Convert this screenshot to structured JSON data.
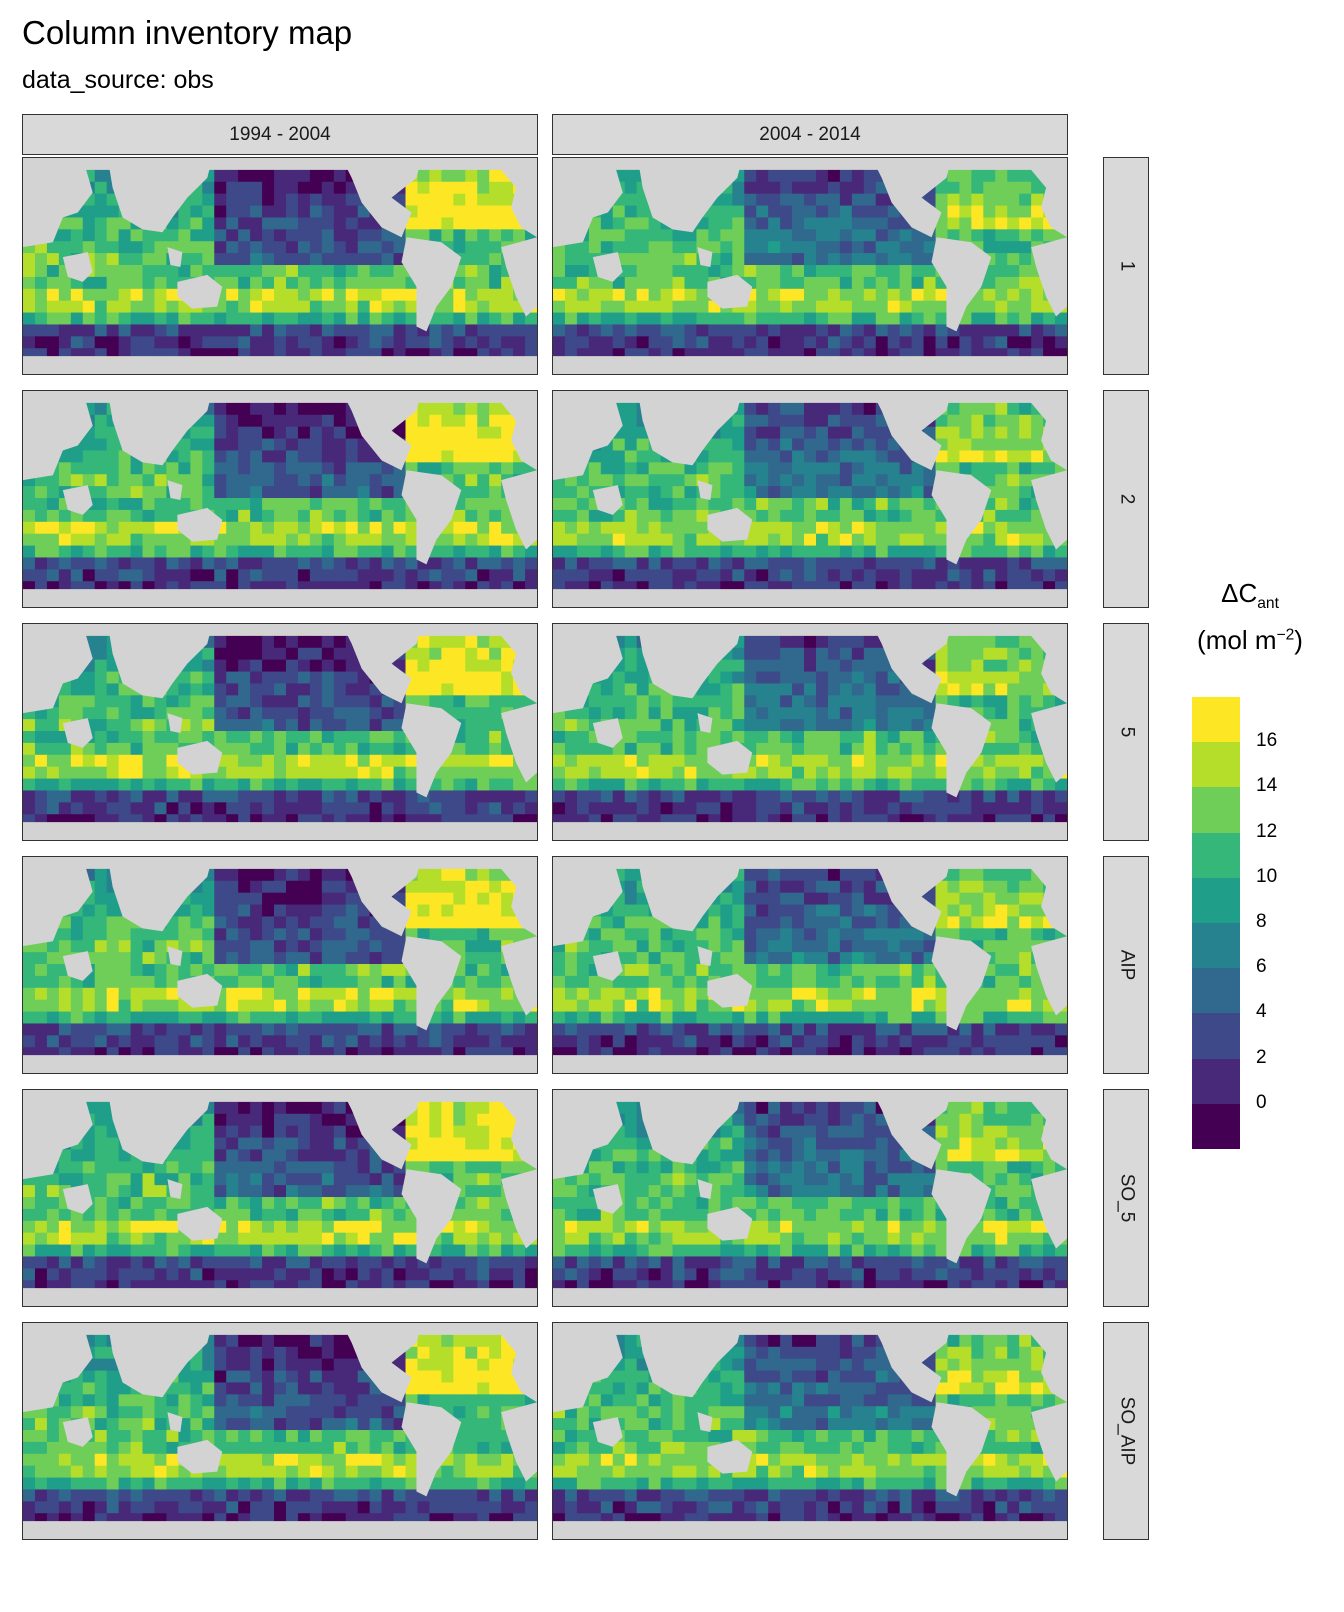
{
  "title": "Column inventory map",
  "subtitle": "data_source: obs",
  "legend": {
    "title_main": "ΔC",
    "title_sub": "ant",
    "unit_prefix": "(mol m",
    "unit_sup": "−2",
    "unit_suffix": ")",
    "ticks": [
      "16",
      "14",
      "12",
      "10",
      "8",
      "6",
      "4",
      "2",
      "0"
    ],
    "colors": [
      "#fde725",
      "#b5de2b",
      "#6ece58",
      "#35b779",
      "#1f9e89",
      "#26828e",
      "#31688e",
      "#3e4989",
      "#482878",
      "#440154"
    ]
  },
  "chart_data": {
    "type": "heatmap",
    "title": "Column inventory map",
    "subtitle": "data_source: obs",
    "columns": [
      "1994 - 2004",
      "2004 - 2014"
    ],
    "rows": [
      "1",
      "2",
      "5",
      "AIP",
      "SO_5",
      "SO_AIP"
    ],
    "legend_title": "ΔCant (mol m−2)",
    "scale_breaks": [
      16,
      14,
      12,
      10,
      8,
      6,
      4,
      2,
      0
    ],
    "colormap": "viridis",
    "land_color": "#d3d3d3",
    "legend_position": "right"
  }
}
